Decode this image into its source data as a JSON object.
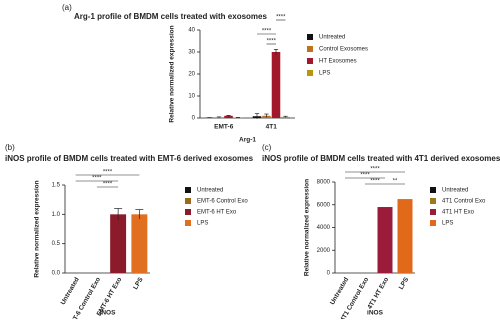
{
  "chart_data": [
    {
      "type": "bar",
      "panel": "(a)",
      "title": "Arg-1 profile of BMDM cells treated with exosomes",
      "y_label": "Relative normalized expression",
      "x_label": "Arg-1",
      "categories": [
        "EMT-6",
        "4T1"
      ],
      "series": [
        {
          "name": "Untreated",
          "color": "#111111",
          "values": [
            0.1,
            0.8
          ],
          "errors": [
            0.1,
            1.2
          ]
        },
        {
          "name": "Control Exosomes",
          "color": "#c0701e",
          "values": [
            0.3,
            1
          ],
          "errors": [
            0.2,
            0.8
          ]
        },
        {
          "name": "HT Exosomes",
          "color": "#a3172a",
          "values": [
            1,
            30
          ],
          "errors": [
            0.2,
            1.2
          ]
        },
        {
          "name": "LPS",
          "color": "#b8960c",
          "values": [
            0.2,
            0.5
          ],
          "errors": [
            0.1,
            0.3
          ]
        }
      ],
      "ylim": [
        0,
        40
      ],
      "yticks": [
        0,
        10,
        20,
        30,
        40
      ],
      "annotations": [
        "****",
        "****",
        "****"
      ]
    },
    {
      "type": "bar",
      "panel": "(b)",
      "title": "iNOS profile of BMDM cells treated with EMT-6 derived exosomes",
      "y_label": "Relative normalized expression",
      "x_label": "iNOS",
      "categories": [
        "Untreated",
        "EMT-6 Control Exo",
        "EMT-6 HT Exo",
        "LPS"
      ],
      "values": [
        0,
        0,
        1.0,
        1.0
      ],
      "errors": [
        0,
        0,
        0.1,
        0.08
      ],
      "colors": [
        "#111111",
        "#9a6a1c",
        "#8b1a2b",
        "#e07020"
      ],
      "ylim": [
        0,
        1.5
      ],
      "yticks": [
        {
          "value": 0,
          "label": "0.0"
        },
        {
          "value": 0.5,
          "label": "0.5"
        },
        {
          "value": 1,
          "label": "1.0"
        },
        {
          "value": 1.5,
          "label": "1.5"
        }
      ],
      "annotations": [
        "****",
        "****",
        "****"
      ]
    },
    {
      "type": "bar",
      "panel": "(c)",
      "title": "iNOS profile of BMDM cells treated with 4T1 derived exosomes",
      "y_label": "Relative normalized expression",
      "x_label": "iNOS",
      "categories": [
        "Untreated",
        "4T1 Control Exo",
        "4T1 HT Exo",
        "LPS"
      ],
      "values": [
        0,
        0,
        5800,
        6500
      ],
      "colors": [
        "#111111",
        "#9a7a1c",
        "#9b1b3b",
        "#e06a1a"
      ],
      "ylim": [
        0,
        8000
      ],
      "yticks": [
        0,
        2000,
        4000,
        6000,
        8000
      ],
      "annotations": [
        "****",
        "****",
        "****",
        "**"
      ]
    }
  ]
}
